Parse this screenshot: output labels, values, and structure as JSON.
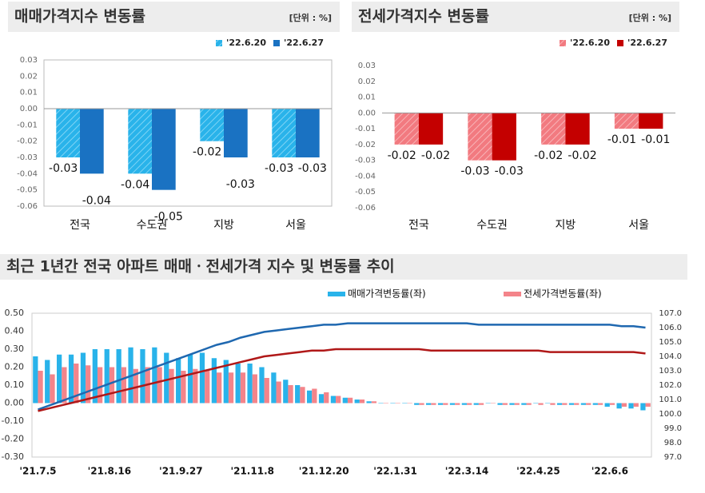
{
  "chart_data": [
    {
      "type": "bar",
      "title": "매매가격지수 변동률",
      "unit": "[단위 : %]",
      "categories": [
        "전국",
        "수도권",
        "지방",
        "서울"
      ],
      "series": [
        {
          "name": "'22.6.20",
          "color": "#29b3ea",
          "hatched": true,
          "values": [
            -0.03,
            -0.04,
            -0.02,
            -0.03
          ]
        },
        {
          "name": "'22.6.27",
          "color": "#1a72c2",
          "values": [
            -0.04,
            -0.05,
            -0.03,
            -0.03
          ]
        }
      ],
      "ylim": [
        -0.06,
        0.03
      ],
      "yticks": [
        0.03,
        0.02,
        0.01,
        {
          "value": 0,
          "label": "0.00"
        },
        -0.01,
        -0.02,
        -0.03,
        -0.04,
        -0.05,
        -0.06
      ],
      "legend": "top-right",
      "frame": true
    },
    {
      "type": "bar",
      "title": "전세가격지수 변동률",
      "unit": "[단위 : %]",
      "categories": [
        "전국",
        "수도권",
        "지방",
        "서울"
      ],
      "series": [
        {
          "name": "'22.6.20",
          "color": "#f27a80",
          "hatched": true,
          "values": [
            -0.02,
            -0.03,
            -0.02,
            -0.01
          ]
        },
        {
          "name": "'22.6.27",
          "color": "#c40000",
          "values": [
            -0.02,
            -0.03,
            -0.02,
            -0.01
          ]
        }
      ],
      "ylim": [
        -0.06,
        0.03
      ],
      "yticks": [
        0.03,
        0.02,
        0.01,
        {
          "value": 0,
          "label": "0.00"
        },
        -0.01,
        -0.02,
        -0.03,
        -0.04,
        -0.05,
        -0.06
      ],
      "legend": "top-right",
      "frame": false
    },
    {
      "type": "combo",
      "title": "최근 1년간 전국 아파트 매매ㆍ전세가격 지수 및 변동률 추이",
      "categories": [
        "'21.7.5",
        null,
        null,
        null,
        null,
        null,
        "'21.8.16",
        null,
        null,
        null,
        null,
        null,
        "'21.9.27",
        null,
        null,
        null,
        null,
        null,
        "'21.11.8",
        null,
        null,
        null,
        null,
        null,
        "'21.12.20",
        null,
        null,
        null,
        null,
        null,
        "'22.1.31",
        null,
        null,
        null,
        null,
        null,
        "'22.3.14",
        null,
        null,
        null,
        null,
        null,
        "'22.4.25",
        null,
        null,
        null,
        null,
        null,
        "'22.6.6",
        null,
        null,
        null
      ],
      "series": [
        {
          "name": "매매가격변동률(좌)",
          "type": "bar",
          "color": "#29b3ea",
          "values": [
            0.26,
            0.24,
            0.27,
            0.27,
            0.28,
            0.3,
            0.3,
            0.3,
            0.31,
            0.3,
            0.31,
            0.28,
            0.25,
            0.27,
            0.28,
            0.25,
            0.24,
            0.22,
            0.22,
            0.2,
            0.17,
            0.13,
            0.1,
            0.07,
            0.05,
            0.04,
            0.03,
            0.02,
            0.01,
            0.0,
            0.0,
            0.0,
            -0.01,
            -0.01,
            -0.01,
            -0.01,
            -0.01,
            -0.01,
            0.0,
            -0.01,
            -0.01,
            -0.01,
            0.0,
            0.0,
            -0.01,
            -0.01,
            -0.01,
            -0.01,
            -0.02,
            -0.03,
            -0.03,
            -0.04
          ]
        },
        {
          "name": "전세가격변동률(좌)",
          "type": "bar",
          "color": "#f4848a",
          "values": [
            0.18,
            0.16,
            0.2,
            0.22,
            0.21,
            0.2,
            0.2,
            0.2,
            0.19,
            0.2,
            0.2,
            0.19,
            0.18,
            0.19,
            0.18,
            0.17,
            0.17,
            0.17,
            0.16,
            0.14,
            0.12,
            0.1,
            0.09,
            0.08,
            0.06,
            0.04,
            0.03,
            0.02,
            0.01,
            0.0,
            0.0,
            0.0,
            -0.01,
            -0.01,
            -0.01,
            -0.01,
            -0.01,
            -0.01,
            0.0,
            -0.01,
            -0.01,
            -0.01,
            -0.01,
            -0.01,
            -0.01,
            -0.01,
            -0.01,
            -0.01,
            -0.01,
            -0.02,
            -0.02,
            -0.02
          ]
        },
        {
          "type": "line",
          "axis": "y2",
          "color": "#1f68b0",
          "values": [
            100.3,
            100.6,
            100.9,
            101.2,
            101.5,
            101.8,
            102.1,
            102.4,
            102.7,
            103.0,
            103.3,
            103.6,
            103.9,
            104.2,
            104.5,
            104.8,
            105.0,
            105.3,
            105.5,
            105.7,
            105.8,
            105.9,
            106.0,
            106.1,
            106.2,
            106.2,
            106.3,
            106.3,
            106.3,
            106.3,
            106.3,
            106.3,
            106.3,
            106.3,
            106.3,
            106.3,
            106.3,
            106.2,
            106.2,
            106.2,
            106.2,
            106.2,
            106.2,
            106.2,
            106.2,
            106.2,
            106.2,
            106.2,
            106.2,
            106.1,
            106.1,
            106.0
          ]
        },
        {
          "type": "line",
          "axis": "y2",
          "color": "#b01818",
          "values": [
            100.2,
            100.4,
            100.6,
            100.8,
            101.0,
            101.2,
            101.4,
            101.6,
            101.8,
            102.0,
            102.2,
            102.4,
            102.6,
            102.8,
            103.0,
            103.2,
            103.4,
            103.6,
            103.8,
            104.0,
            104.1,
            104.2,
            104.3,
            104.4,
            104.4,
            104.5,
            104.5,
            104.5,
            104.5,
            104.5,
            104.5,
            104.5,
            104.5,
            104.4,
            104.4,
            104.4,
            104.4,
            104.4,
            104.4,
            104.4,
            104.4,
            104.4,
            104.4,
            104.3,
            104.3,
            104.3,
            104.3,
            104.3,
            104.3,
            104.3,
            104.3,
            104.2
          ]
        }
      ],
      "ylim": [
        -0.3,
        0.5
      ],
      "yticks": [
        {
          "value": 0.5,
          "label": "0.50"
        },
        {
          "value": 0.4,
          "label": "0.40"
        },
        {
          "value": 0.3,
          "label": "0.30"
        },
        {
          "value": 0.2,
          "label": "0.20"
        },
        {
          "value": 0.1,
          "label": "0.10"
        },
        {
          "value": 0,
          "label": "0.00"
        },
        {
          "value": -0.1,
          "label": "-0.10"
        },
        {
          "value": -0.2,
          "label": "-0.20"
        },
        {
          "value": -0.3,
          "label": "-0.30"
        }
      ],
      "y2lim": [
        97,
        107
      ],
      "y2ticks": [
        {
          "value": 107,
          "label": "107.0"
        },
        {
          "value": 106,
          "label": "106.0"
        },
        {
          "value": 105,
          "label": "105.0"
        },
        {
          "value": 104,
          "label": "104.0"
        },
        {
          "value": 103,
          "label": "103.0"
        },
        {
          "value": 102,
          "label": "102.0"
        },
        {
          "value": 101,
          "label": "101.0"
        },
        {
          "value": 100,
          "label": "100.0"
        },
        {
          "value": 99,
          "label": "99.0"
        },
        {
          "value": 98,
          "label": "98.0"
        },
        {
          "value": 97,
          "label": "97.0"
        }
      ],
      "legend": "top"
    }
  ]
}
